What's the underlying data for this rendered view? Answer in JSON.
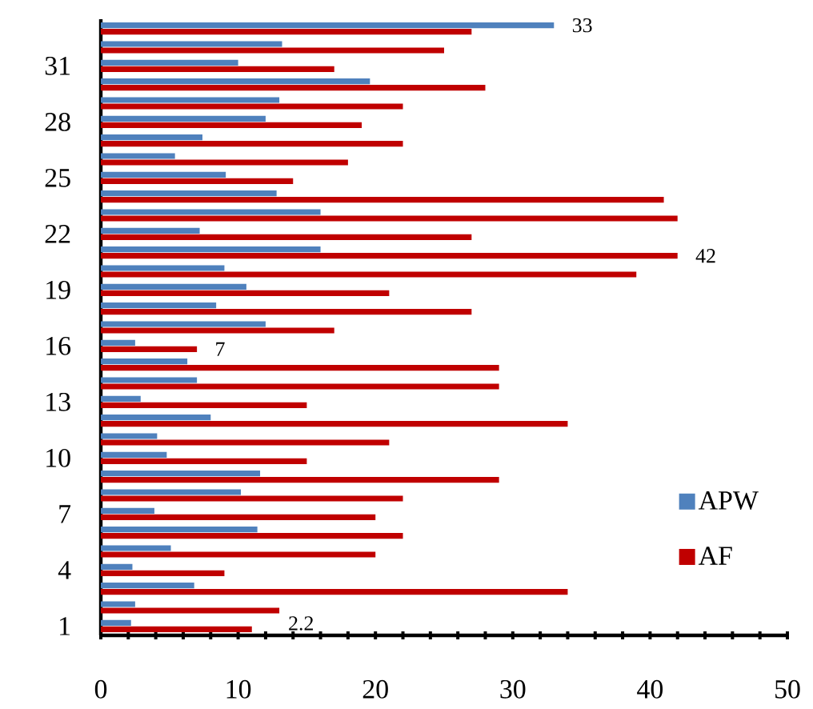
{
  "chart_data": {
    "type": "bar",
    "orientation": "horizontal",
    "categories": [
      null,
      null,
      "31",
      null,
      null,
      "28",
      null,
      null,
      "25",
      null,
      null,
      "22",
      null,
      null,
      "19",
      null,
      null,
      "16",
      null,
      null,
      "13",
      null,
      null,
      "10",
      null,
      null,
      "7",
      null,
      null,
      "4",
      null,
      null,
      "1"
    ],
    "series": [
      {
        "name": "APW",
        "color": "#4f81bd",
        "values": [
          33,
          13.2,
          10,
          19.6,
          13,
          12,
          7.4,
          5.4,
          9.1,
          12.8,
          16,
          7.2,
          16,
          9,
          10.6,
          8.4,
          12,
          2.5,
          6.3,
          7,
          2.9,
          8,
          4.1,
          4.8,
          11.6,
          10.2,
          3.9,
          11.4,
          5.1,
          2.3,
          6.8,
          2.5,
          2.2
        ],
        "value_labels": [
          "33",
          null,
          null,
          null,
          null,
          null,
          null,
          null,
          null,
          null,
          null,
          null,
          null,
          null,
          null,
          null,
          null,
          null,
          null,
          null,
          null,
          null,
          null,
          null,
          null,
          null,
          null,
          null,
          null,
          null,
          null,
          null,
          null
        ]
      },
      {
        "name": "AF",
        "color": "#c00000",
        "values": [
          27,
          25,
          17,
          28,
          22,
          19,
          22,
          18,
          14,
          41,
          42,
          27,
          42,
          39,
          21,
          27,
          17,
          7,
          29,
          29,
          15,
          34,
          21,
          15,
          29,
          22,
          20,
          22,
          20,
          9,
          34,
          13,
          11
        ],
        "value_labels": [
          null,
          null,
          null,
          null,
          null,
          null,
          null,
          null,
          null,
          null,
          null,
          null,
          "42",
          null,
          null,
          null,
          null,
          "7",
          null,
          null,
          null,
          null,
          null,
          null,
          null,
          null,
          null,
          null,
          null,
          null,
          null,
          null,
          null
        ]
      }
    ],
    "xlim": [
      0,
      50
    ],
    "xticks": [
      0,
      {
        "value": 2,
        "label": null
      },
      {
        "value": 4,
        "label": null
      },
      {
        "value": 6,
        "label": null
      },
      {
        "value": 8,
        "label": null
      },
      10,
      {
        "value": 12,
        "label": null
      },
      {
        "value": 14,
        "label": null
      },
      {
        "value": 16,
        "label": null
      },
      {
        "value": 18,
        "label": null
      },
      20,
      {
        "value": 22,
        "label": null
      },
      {
        "value": 24,
        "label": null
      },
      {
        "value": 26,
        "label": null
      },
      {
        "value": 28,
        "label": null
      },
      30,
      {
        "value": 32,
        "label": null
      },
      {
        "value": 34,
        "label": null
      },
      {
        "value": 36,
        "label": null
      },
      {
        "value": 38,
        "label": null
      },
      40,
      {
        "value": 42,
        "label": null
      },
      {
        "value": 44,
        "label": null
      },
      {
        "value": 46,
        "label": null
      },
      {
        "value": 48,
        "label": null
      },
      50
    ],
    "legend": "bottom right",
    "annotations": [
      "2.2"
    ]
  }
}
